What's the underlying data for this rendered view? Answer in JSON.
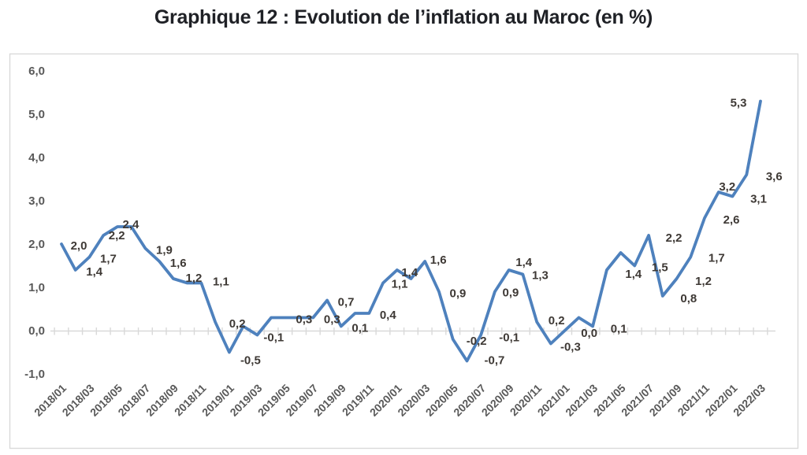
{
  "page": {
    "title": "Graphique 12 : Evolution de l’inflation au Maroc (en %)"
  },
  "chart_data": {
    "type": "line",
    "title": "Graphique 12 : Evolution de l’inflation au Maroc (en %)",
    "xlabel": "",
    "ylabel": "",
    "legend": "none",
    "grid": false,
    "ylim": [
      -1.5,
      6.4
    ],
    "y_tick_labels": [
      "6,0",
      "5,0",
      "4,0",
      "3,0",
      "2,0",
      "1,0",
      "0,0",
      "-1,0"
    ],
    "y_tick_values": [
      6,
      5,
      4,
      3,
      2,
      1,
      0,
      -1
    ],
    "x_tick_labels": [
      "2018/01",
      "2018/03",
      "2018/05",
      "2018/07",
      "2018/09",
      "2018/11",
      "2019/01",
      "2019/03",
      "2019/05",
      "2019/07",
      "2019/09",
      "2019/11",
      "2020/01",
      "2020/03",
      "2020/05",
      "2020/07",
      "2020/09",
      "2020/11",
      "2021/01",
      "2021/03",
      "2021/05",
      "2021/07",
      "2021/09",
      "2021/11",
      "2022/01",
      "2022/03"
    ],
    "categories": [
      "2018/01",
      "2018/02",
      "2018/03",
      "2018/04",
      "2018/05",
      "2018/06",
      "2018/07",
      "2018/08",
      "2018/09",
      "2018/10",
      "2018/11",
      "2018/12",
      "2019/01",
      "2019/02",
      "2019/03",
      "2019/04",
      "2019/05",
      "2019/06",
      "2019/07",
      "2019/08",
      "2019/09",
      "2019/10",
      "2019/11",
      "2019/12",
      "2020/01",
      "2020/02",
      "2020/03",
      "2020/04",
      "2020/05",
      "2020/06",
      "2020/07",
      "2020/08",
      "2020/09",
      "2020/10",
      "2020/11",
      "2020/12",
      "2021/01",
      "2021/02",
      "2021/03",
      "2021/04",
      "2021/05",
      "2021/06",
      "2021/07",
      "2021/08",
      "2021/09",
      "2021/10",
      "2021/11",
      "2021/12",
      "2022/01",
      "2022/02",
      "2022/03"
    ],
    "values": [
      2.0,
      1.4,
      1.7,
      2.2,
      2.4,
      2.4,
      1.9,
      1.6,
      1.2,
      1.1,
      1.1,
      0.2,
      -0.5,
      0.1,
      -0.1,
      0.3,
      0.3,
      0.3,
      0.3,
      0.7,
      0.1,
      0.4,
      0.4,
      1.1,
      1.4,
      1.2,
      1.6,
      0.9,
      -0.2,
      -0.7,
      -0.1,
      0.9,
      1.4,
      1.3,
      0.2,
      -0.3,
      0.0,
      0.3,
      0.1,
      1.4,
      1.8,
      1.5,
      2.2,
      0.8,
      1.2,
      1.7,
      2.6,
      3.2,
      3.1,
      3.6,
      5.3
    ],
    "point_labels": [
      "2,0",
      "1,4",
      "1,7",
      "2,2",
      "2,4",
      null,
      "1,9",
      "1,6",
      "1,2",
      null,
      "1,1",
      "0,2",
      "-0,5",
      null,
      "-0,1",
      null,
      "0,3",
      null,
      "0,3",
      "0,7",
      "0,1",
      null,
      "0,4",
      "1,1",
      "1,4",
      null,
      "1,6",
      "0,9",
      "-0,2",
      "-0,7",
      "-0,1",
      "0,9",
      "1,4",
      "1,3",
      "0,2",
      "-0,3",
      "0,0",
      null,
      "0,1",
      "1,4",
      null,
      "1,5",
      "2,2",
      "0,8",
      "1,2",
      "1,7",
      "2,6",
      "3,2",
      "3,1",
      "3,6",
      "5,3"
    ],
    "label_offsets": {
      "0": [
        22,
        2
      ],
      "3": [
        17,
        0
      ],
      "4": [
        17,
        -3
      ],
      "8": [
        26,
        -1
      ],
      "10": [
        25,
        -2
      ],
      "11": [
        28,
        2
      ],
      "12": [
        27,
        10
      ],
      "14": [
        21,
        3
      ],
      "23": [
        21,
        1
      ],
      "24": [
        16,
        3
      ],
      "26": [
        17,
        -2
      ],
      "28": [
        30,
        2
      ],
      "29": [
        35,
        -1
      ],
      "30": [
        36,
        3
      ],
      "31": [
        20,
        1
      ],
      "32": [
        19,
        -10
      ],
      "33": [
        22,
        1
      ],
      "34": [
        25,
        -2
      ],
      "35": [
        25,
        4
      ],
      "36": [
        31,
        3
      ],
      "38": [
        33,
        3
      ],
      "39": [
        34,
        5
      ],
      "41": [
        32,
        2
      ],
      "42": [
        32,
        3
      ],
      "43": [
        33,
        3
      ],
      "44": [
        34,
        3
      ],
      "45": [
        33,
        1
      ],
      "46": [
        34,
        2
      ],
      "47": [
        11,
        -7
      ],
      "48": [
        33,
        3
      ],
      "49": [
        35,
        2
      ],
      "50": [
        -28,
        2
      ]
    },
    "line_color": "#4e81bd",
    "label_color": "#3e3935",
    "axis_text_color": "#595959",
    "axis_line_color": "#d9d9d9"
  }
}
